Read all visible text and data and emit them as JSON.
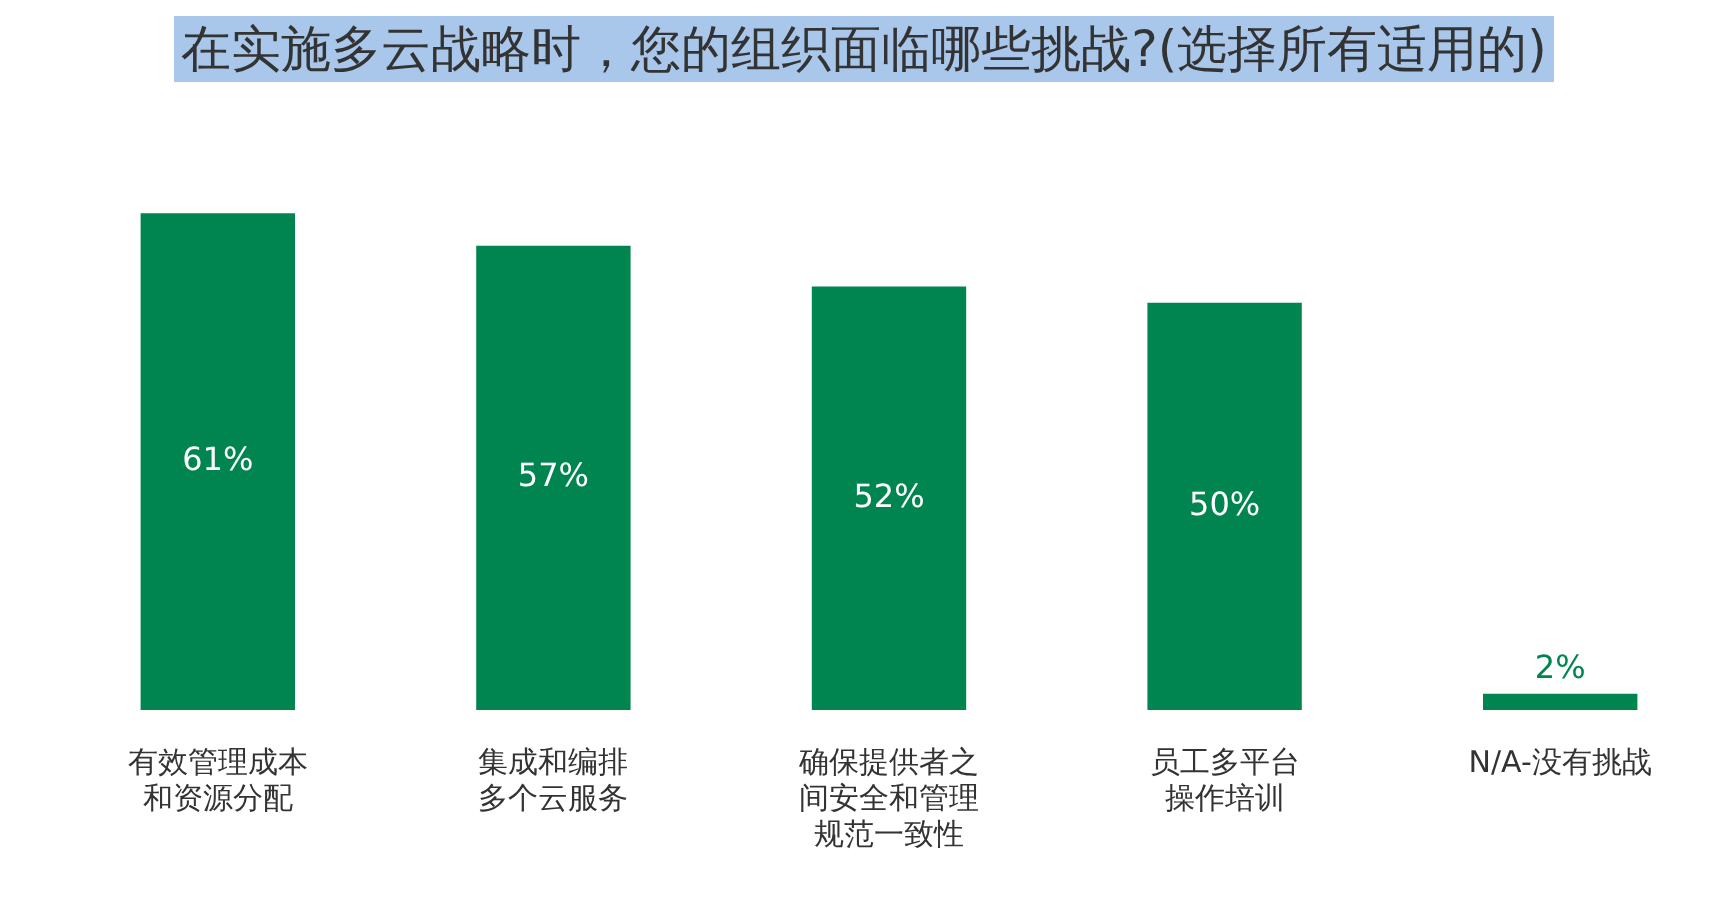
{
  "chart_data": {
    "type": "bar",
    "title": "在实施多云战略时，您的组织面临哪些挑战?(选择所有适用的)",
    "categories": [
      "有效管理成本和资源分配",
      "集成和编排多个云服务",
      "确保提供者之间安全和管理规范一致性",
      "员工多平台操作培训",
      "N/A-没有挑战"
    ],
    "values": [
      61,
      57,
      52,
      50,
      2
    ],
    "value_labels": [
      "61%",
      "57%",
      "52%",
      "50%",
      "2%"
    ],
    "color": "#008551",
    "grid": false,
    "legend": false
  }
}
